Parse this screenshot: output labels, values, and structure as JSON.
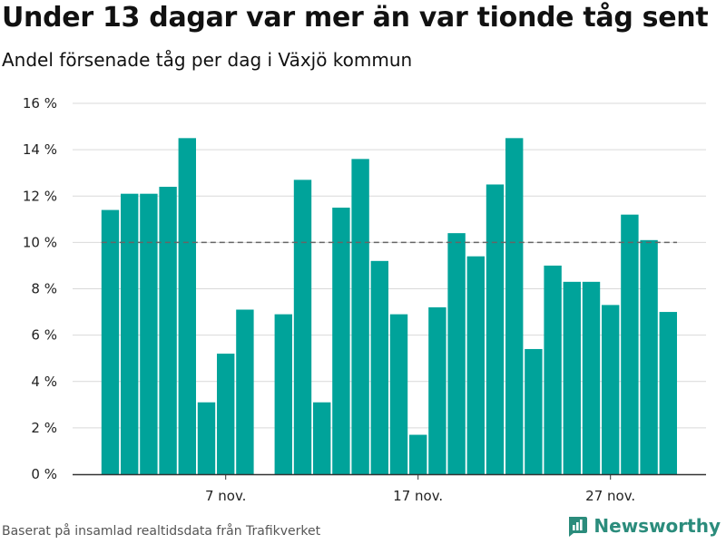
{
  "title": "Under 13 dagar var mer än var tionde tåg sent",
  "subtitle": "Andel försenade tåg per dag i Växjö kommun",
  "source": "Baserat på insamlad realtidsdata från Trafikverket",
  "brand": "Newsworthy",
  "colors": {
    "bar": "#00a39a",
    "grid": "#d9d9d9",
    "axis": "#333333",
    "reference_line": "#666666",
    "brand": "#2b8c7c"
  },
  "chart_data": {
    "type": "bar",
    "x": [
      1,
      2,
      3,
      4,
      5,
      6,
      7,
      8,
      9,
      10,
      11,
      12,
      13,
      14,
      15,
      16,
      17,
      18,
      19,
      20,
      21,
      22,
      23,
      24,
      25,
      26,
      27,
      28,
      29,
      30
    ],
    "values": [
      11.4,
      12.1,
      12.1,
      12.4,
      14.5,
      3.1,
      5.2,
      7.1,
      null,
      6.9,
      12.7,
      3.1,
      11.5,
      13.6,
      9.2,
      6.9,
      1.7,
      7.2,
      10.4,
      9.4,
      12.5,
      14.5,
      5.4,
      9.0,
      8.3,
      8.3,
      7.3,
      11.2,
      10.1,
      7.0
    ],
    "unit": "%",
    "ylim": [
      0,
      16
    ],
    "y_ticks": [
      0,
      2,
      4,
      6,
      8,
      10,
      12,
      14,
      16
    ],
    "y_tick_labels": [
      "0 %",
      "2 %",
      "4 %",
      "6 %",
      "8 %",
      "10 %",
      "12 %",
      "14 %",
      "16 %"
    ],
    "x_ticks": [
      7,
      17,
      27
    ],
    "x_tick_labels": [
      "7 nov.",
      "17 nov.",
      "27 nov."
    ],
    "reference_line": 10,
    "grid": true
  }
}
